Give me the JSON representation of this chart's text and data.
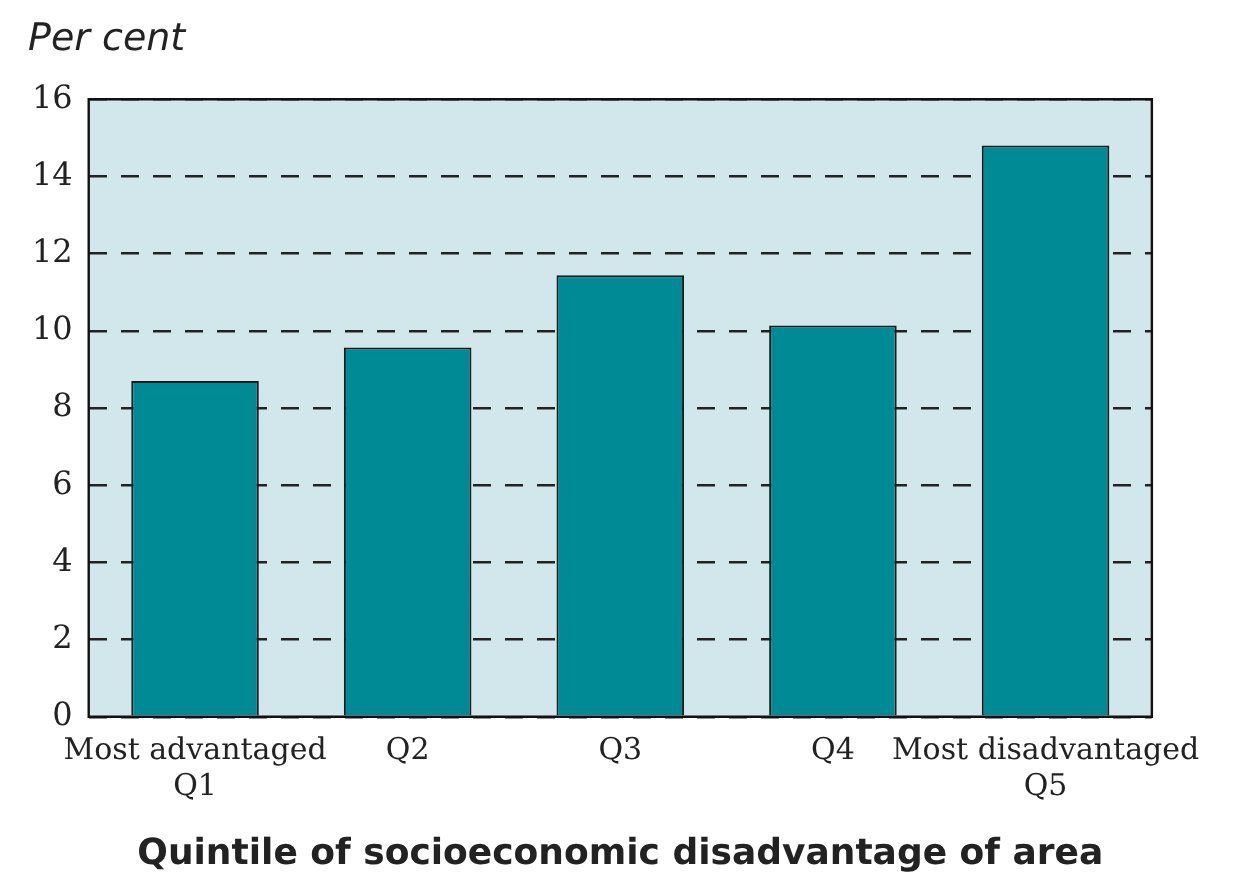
{
  "chart_data": {
    "type": "bar",
    "ylabel": "Per cent",
    "xlabel": "Quintile of socioeconomic disadvantage of area",
    "categories": [
      "Most advantaged\nQ1",
      "Q2",
      "Q3",
      "Q4",
      "Most disadvantaged\nQ5"
    ],
    "values": [
      8.7,
      9.57,
      11.44,
      10.14,
      14.8
    ],
    "color": "#008a96",
    "ylim": [
      0,
      16
    ],
    "yticks": [
      0,
      2,
      4,
      6,
      8,
      10,
      12,
      14,
      16
    ],
    "grid": "y",
    "legend": false
  }
}
